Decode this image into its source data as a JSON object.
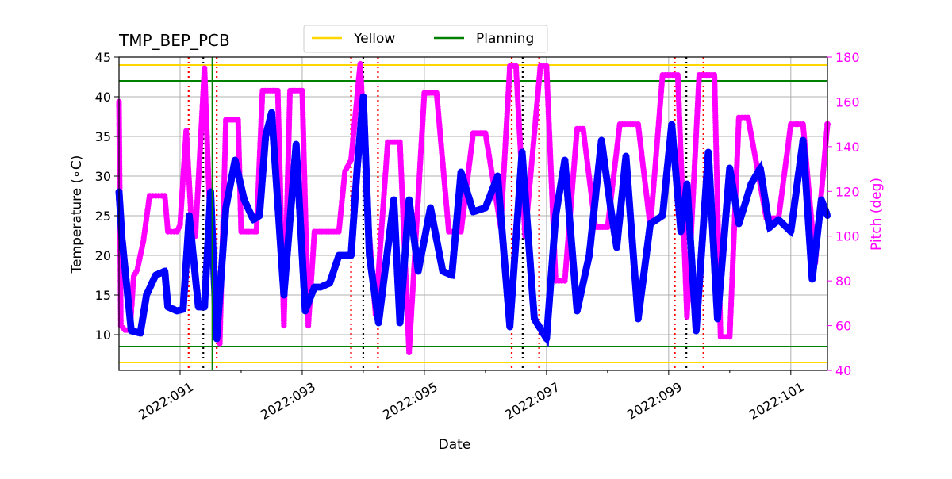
{
  "chart_data": {
    "type": "line",
    "title": "TMP_BEP_PCB",
    "xlabel": "Date",
    "ylabel": "Temperature ($^\\circ$C)",
    "ylabel_display": "Temperature (∘C)",
    "y2label": "Pitch (deg)",
    "xlim": [
      2022.09,
      2022.1016
    ],
    "ylim": [
      5.5,
      45
    ],
    "y2lim": [
      40,
      180
    ],
    "x_ticks": [
      {
        "value": 2022.091,
        "label": "2022:091"
      },
      {
        "value": 2022.093,
        "label": "2022:093"
      },
      {
        "value": 2022.095,
        "label": "2022:095"
      },
      {
        "value": 2022.097,
        "label": "2022:097"
      },
      {
        "value": 2022.099,
        "label": "2022:099"
      },
      {
        "value": 2022.101,
        "label": "2022:101"
      }
    ],
    "y_ticks": [
      10,
      15,
      20,
      25,
      30,
      35,
      40,
      45
    ],
    "y2_ticks": [
      40,
      60,
      80,
      100,
      120,
      140,
      160,
      180
    ],
    "grid": true,
    "legend": {
      "placement": "top-center",
      "entries": [
        {
          "label": "Yellow",
          "color": "#ffd700"
        },
        {
          "label": "Planning",
          "color": "#008000"
        }
      ]
    },
    "limit_lines": [
      {
        "name": "yellow-high",
        "y": 44,
        "color": "#ffd700"
      },
      {
        "name": "yellow-low",
        "y": 6.5,
        "color": "#ffd700"
      },
      {
        "name": "planning-high",
        "y": 42,
        "color": "#008000"
      },
      {
        "name": "planning-low",
        "y": 8.5,
        "color": "#008000"
      }
    ],
    "vertical_markers": {
      "black_dotted": [
        2022.09138,
        2022.094,
        2022.09661,
        2022.09929
      ],
      "red_dotted": [
        2022.09114,
        2022.0916,
        2022.0938,
        2022.09424,
        2022.09643,
        2022.09688,
        2022.0991,
        2022.09957
      ],
      "green_solid": [
        2022.09153
      ]
    },
    "series": [
      {
        "axis": "left",
        "color": "#0000ff",
        "x": [
          2022.09,
          2022.09005,
          2022.0902,
          2022.09035,
          2022.09045,
          2022.0906,
          2022.09075,
          2022.0908,
          2022.09095,
          2022.09105,
          2022.09115,
          2022.0913,
          2022.0914,
          2022.0915,
          2022.0916,
          2022.09175,
          2022.0919,
          2022.09205,
          2022.0922,
          2022.0923,
          2022.0924,
          2022.0925,
          2022.0927,
          2022.0929,
          2022.09305,
          2022.0932,
          2022.0933,
          2022.09345,
          2022.0936,
          2022.0938,
          2022.0939,
          2022.094,
          2022.0941,
          2022.09425,
          2022.0945,
          2022.0946,
          2022.09475,
          2022.0949,
          2022.0951,
          2022.0953,
          2022.09545,
          2022.0956,
          2022.0958,
          2022.096,
          2022.0962,
          2022.0964,
          2022.0966,
          2022.0968,
          2022.097,
          2022.09715,
          2022.0973,
          2022.0975,
          2022.0977,
          2022.0979,
          2022.09805,
          2022.09815,
          2022.0983,
          2022.0985,
          2022.0987,
          2022.0989,
          2022.09905,
          2022.0992,
          2022.0993,
          2022.09945,
          2022.09965,
          2022.0998,
          2022.1,
          2022.10015,
          2022.10035,
          2022.1005,
          2022.10065,
          2022.1008,
          2022.101,
          2022.1012,
          2022.10135,
          2022.1015,
          2022.1016
        ],
        "y": [
          28,
          22,
          10.5,
          10.2,
          15,
          17.5,
          18,
          13.5,
          13,
          13.2,
          25,
          13.5,
          13.5,
          28,
          9.5,
          26,
          32,
          27,
          24.5,
          25,
          35,
          38,
          15,
          34,
          13,
          16,
          16,
          16.5,
          20,
          20,
          31,
          40,
          20,
          11.5,
          27,
          11.5,
          27,
          18,
          26,
          18,
          17.5,
          30.5,
          25.5,
          26,
          30,
          11,
          33,
          12,
          9.5,
          25,
          32,
          13,
          20,
          34.5,
          26,
          21,
          32.5,
          12,
          24,
          25,
          36.5,
          23,
          29,
          10.5,
          33,
          12,
          31,
          24,
          29,
          31,
          23.5,
          24.5,
          23,
          34.5,
          17,
          27,
          25
        ]
      },
      {
        "axis": "right",
        "color": "#ff00ff",
        "x": [
          2022.09,
          2022.09003,
          2022.0901,
          2022.09018,
          2022.09024,
          2022.0903,
          2022.0904,
          2022.0905,
          2022.0906,
          2022.09075,
          2022.0908,
          2022.09095,
          2022.091,
          2022.0911,
          2022.0912,
          2022.09125,
          2022.0914,
          2022.0915,
          2022.09165,
          2022.09175,
          2022.09195,
          2022.092,
          2022.09225,
          2022.09235,
          2022.0926,
          2022.0927,
          2022.0928,
          2022.093,
          2022.0931,
          2022.0932,
          2022.0934,
          2022.0936,
          2022.0937,
          2022.0938,
          2022.09395,
          2022.0941,
          2022.0942,
          2022.0944,
          2022.0946,
          2022.09475,
          2022.095,
          2022.0952,
          2022.0954,
          2022.0956,
          2022.0958,
          2022.096,
          2022.09625,
          2022.0964,
          2022.0965,
          2022.09665,
          2022.0969,
          2022.097,
          2022.09715,
          2022.0973,
          2022.0975,
          2022.0976,
          2022.0978,
          2022.098,
          2022.0982,
          2022.0985,
          2022.0987,
          2022.0989,
          2022.09915,
          2022.0993,
          2022.0995,
          2022.09975,
          2022.09985,
          2022.1,
          2022.10015,
          2022.1003,
          2022.1006,
          2022.1008,
          2022.101,
          2022.1012,
          2022.1014,
          2022.1016
        ],
        "y": [
          160,
          60,
          58,
          58,
          82,
          85,
          98,
          118,
          118,
          118,
          102,
          102,
          105,
          147,
          100,
          100,
          175,
          100,
          52,
          152,
          152,
          102,
          102,
          165,
          165,
          60,
          165,
          165,
          60,
          102,
          102,
          102,
          129,
          134,
          177,
          100,
          65,
          142,
          142,
          48,
          164,
          164,
          102,
          102,
          146,
          146,
          104,
          176,
          176,
          100,
          176,
          176,
          80,
          80,
          148,
          148,
          104,
          104,
          150,
          150,
          104,
          172,
          172,
          64,
          172,
          172,
          55,
          55,
          153,
          153,
          108,
          108,
          150,
          150,
          88,
          150
        ]
      }
    ]
  }
}
